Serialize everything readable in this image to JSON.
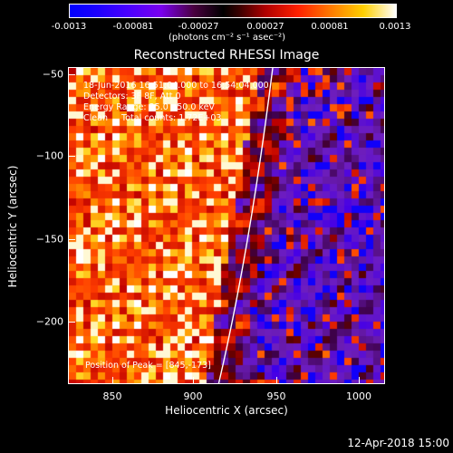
{
  "colorbar": {
    "ticks": [
      "-0.0013",
      "-0.00081",
      "-0.00027",
      "0.00027",
      "0.00081",
      "0.0013"
    ],
    "unit_label": "(photons cm⁻² s⁻¹ asec⁻²)"
  },
  "title": "Reconstructed RHESSI Image",
  "info": {
    "time_range": "18-Jun-2016 16:51:04.000 to 16:54:04.000",
    "detectors": "Detectors: 3F 8F, Att 0",
    "energy_range": "Energy Range: 25.0 - 50.0 keV",
    "method_counts": "Clean     Total counts: 1.72E+03",
    "peak_position": "Position of Peak = [845,-173]"
  },
  "axes": {
    "xlabel": "Heliocentric X (arcsec)",
    "ylabel": "Heliocentric Y (arcsec)",
    "xticks": [
      "850",
      "900",
      "950",
      "1000"
    ],
    "yticks": [
      "−50",
      "−100",
      "−150",
      "−200"
    ],
    "xlim": [
      825,
      1015
    ],
    "ylim": [
      -240,
      -45
    ]
  },
  "footer": {
    "date": "12-Apr-2018 15:00"
  },
  "colors": {
    "background": "#000000",
    "limb": "#ffffff"
  }
}
